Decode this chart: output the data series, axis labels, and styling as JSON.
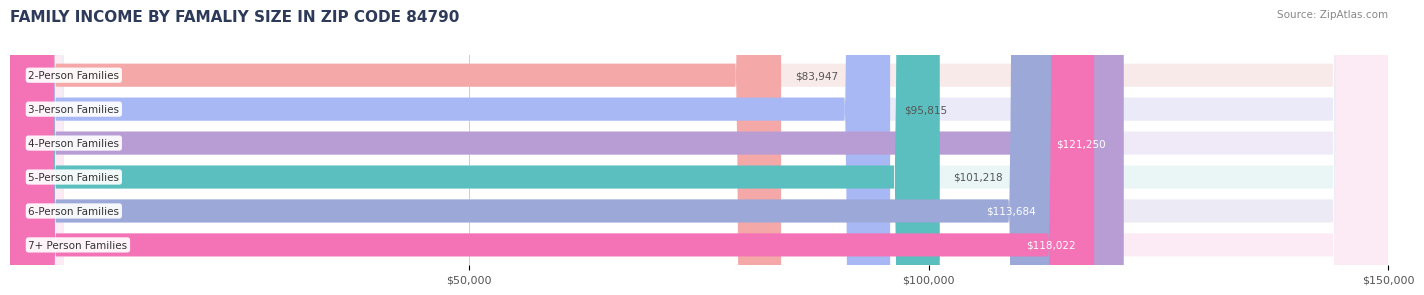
{
  "title": "FAMILY INCOME BY FAMALIY SIZE IN ZIP CODE 84790",
  "source": "Source: ZipAtlas.com",
  "categories": [
    "2-Person Families",
    "3-Person Families",
    "4-Person Families",
    "5-Person Families",
    "6-Person Families",
    "7+ Person Families"
  ],
  "values": [
    83947,
    95815,
    121250,
    101218,
    113684,
    118022
  ],
  "labels": [
    "$83,947",
    "$95,815",
    "$121,250",
    "$101,218",
    "$113,684",
    "$118,022"
  ],
  "bar_colors": [
    "#F4A8A8",
    "#A8B8F4",
    "#B89DD4",
    "#5BBFBF",
    "#9BA8D8",
    "#F472B6"
  ],
  "label_colors": [
    "#555555",
    "#555555",
    "#ffffff",
    "#555555",
    "#ffffff",
    "#ffffff"
  ],
  "bg_colors": [
    "#F9EAEA",
    "#EAEAF9",
    "#F0EAF8",
    "#EAF5F5",
    "#ECEAF5",
    "#FCEAF5"
  ],
  "xlim": [
    0,
    150000
  ],
  "xtick_values": [
    50000,
    100000,
    150000
  ],
  "xtick_labels": [
    "$50,000",
    "$100,000",
    "$150,000"
  ],
  "title_color": "#2d3a5a",
  "source_color": "#888888",
  "label_fontsize": 8,
  "category_fontsize": 8
}
